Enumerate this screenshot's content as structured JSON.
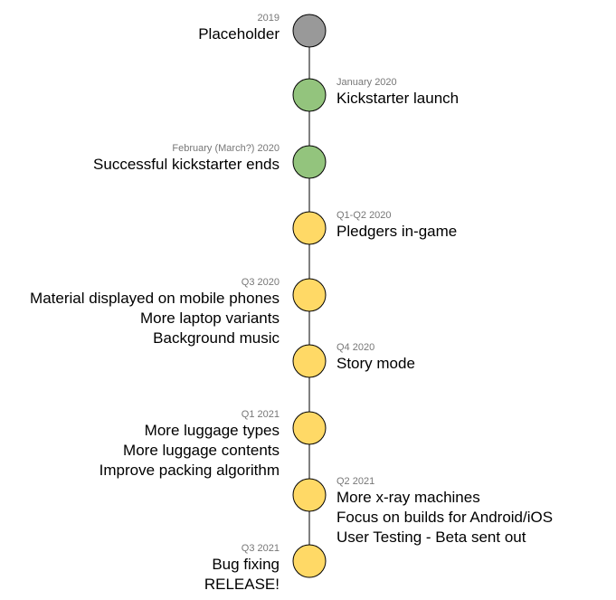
{
  "colors": {
    "gray": "#999999",
    "green": "#93c47d",
    "yellow": "#ffd966",
    "stroke": "#000000"
  },
  "milestones": [
    {
      "date": "2019",
      "lines": [
        "Placeholder"
      ],
      "side": "left",
      "color": "gray"
    },
    {
      "date": "January 2020",
      "lines": [
        "Kickstarter launch"
      ],
      "side": "right",
      "color": "green"
    },
    {
      "date": "February (March?) 2020",
      "lines": [
        "Successful kickstarter ends"
      ],
      "side": "left",
      "color": "green"
    },
    {
      "date": "Q1-Q2 2020",
      "lines": [
        "Pledgers in-game"
      ],
      "side": "right",
      "color": "yellow"
    },
    {
      "date": "Q3 2020",
      "lines": [
        "Material displayed on mobile phones",
        "More laptop variants",
        "Background music"
      ],
      "side": "left",
      "color": "yellow"
    },
    {
      "date": "Q4 2020",
      "lines": [
        "Story mode"
      ],
      "side": "right",
      "color": "yellow"
    },
    {
      "date": "Q1 2021",
      "lines": [
        "More luggage types",
        "More luggage contents",
        "Improve packing algorithm"
      ],
      "side": "left",
      "color": "yellow"
    },
    {
      "date": "Q2 2021",
      "lines": [
        "More x-ray machines",
        "Focus on builds for Android/iOS",
        "User Testing - Beta sent out"
      ],
      "side": "right",
      "color": "yellow"
    },
    {
      "date": "Q3 2021",
      "lines": [
        "Bug fixing",
        "RELEASE!"
      ],
      "side": "left",
      "color": "yellow"
    }
  ]
}
